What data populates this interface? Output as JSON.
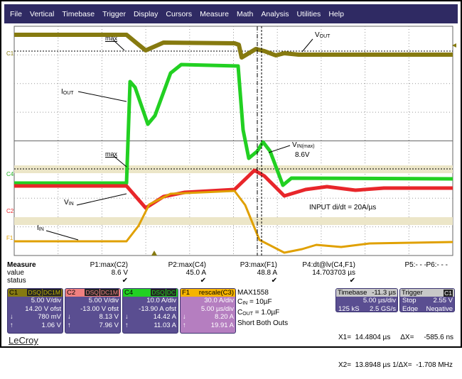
{
  "menu": [
    "File",
    "Vertical",
    "Timebase",
    "Trigger",
    "Display",
    "Cursors",
    "Measure",
    "Math",
    "Analysis",
    "Utilities",
    "Help"
  ],
  "colors": {
    "c1": "#867a10",
    "c2": "#e8262a",
    "c4": "#22d022",
    "f1": "#e0a000",
    "menubar": "#2f2a63",
    "panel": "#5a4e91"
  },
  "annotations": {
    "max1": "max",
    "vout": "V",
    "vout_sub": "OUT",
    "iout": "I",
    "iout_sub": "OUT",
    "max2": "max",
    "vinmax": "V",
    "vinmax_sub": "IN(max)",
    "vinmax_val": "8.6V",
    "didt": "INPUT di/dt = 20A/µs",
    "vin": "V",
    "vin_sub": "IN",
    "iin": "I",
    "iin_sub": "IN",
    "c1_marker": "C1",
    "c4_marker": "C4",
    "c2_marker": "C2",
    "f1_marker": "F1"
  },
  "measure": {
    "title": "Measure",
    "row_value": "value",
    "row_status": "status",
    "check": "✔",
    "params": [
      {
        "name": "P1:max(C2)",
        "value": "8.6 V",
        "ok": true
      },
      {
        "name": "P2:max(C4)",
        "value": "45.0 A",
        "ok": true
      },
      {
        "name": "P3:max(F1)",
        "value": "48.8 A",
        "ok": true
      },
      {
        "name": "P4:dt@lv(C4,F1)",
        "value": "14.703703 µs",
        "ok": true
      },
      {
        "name": "P5:- - -",
        "value": ""
      },
      {
        "name": "P6:- - -",
        "value": ""
      }
    ]
  },
  "channels": [
    {
      "name": "C1",
      "tags": [
        "DSQ",
        "DC1M"
      ],
      "vdiv": "5.00 V/div",
      "ofst": "14.20 V ofst",
      "down": "780 mV",
      "up": "1.06 V"
    },
    {
      "name": "C2",
      "tags": [
        "DSQ",
        "DC1M"
      ],
      "vdiv": "5.00 V/div",
      "ofst": "-13.00 V ofst",
      "down": "8.13 V",
      "up": "7.96 V"
    },
    {
      "name": "C4",
      "tags": [
        "DSQ",
        "DC"
      ],
      "vdiv": "10.0 A/div",
      "ofst": "-13.90 A ofst",
      "down": "14.42 A",
      "up": "11.03 A"
    },
    {
      "name": "F1",
      "tags": [
        "rescale(C3)"
      ],
      "vdiv": "30.0 A/div",
      "ofst": "5.00 µs/div",
      "down": "8.20 A",
      "up": "19.91 A"
    }
  ],
  "arrows": {
    "down": "↓",
    "up": "↑"
  },
  "notes": {
    "l1": "MAX1558",
    "l2": "C",
    "l2_sub": "IN",
    "l2_val": " = 10µF",
    "l3": "C",
    "l3_sub": "OUT",
    "l3_val": " = 1.0µF",
    "l4": "Short Both Outs"
  },
  "timebase": {
    "title": "Timebase",
    "delay": "-11.3 µs",
    "tdiv": "5.00 µs/div",
    "samples": "125 kS",
    "rate": "2.5 GS/s"
  },
  "trigger": {
    "title": "Trigger",
    "src": "C1",
    "mode": "Stop",
    "level": "2.55 V",
    "type": "Edge",
    "slope": "Negative"
  },
  "cursors": {
    "x1": "X1=  14.4804 µs",
    "dx": "ΔX=     -585.6 ns",
    "x2": "X2=  13.8948 µs",
    "inv": "1/ΔX=  -1.708 MHz"
  },
  "brand": "LeCroy"
}
